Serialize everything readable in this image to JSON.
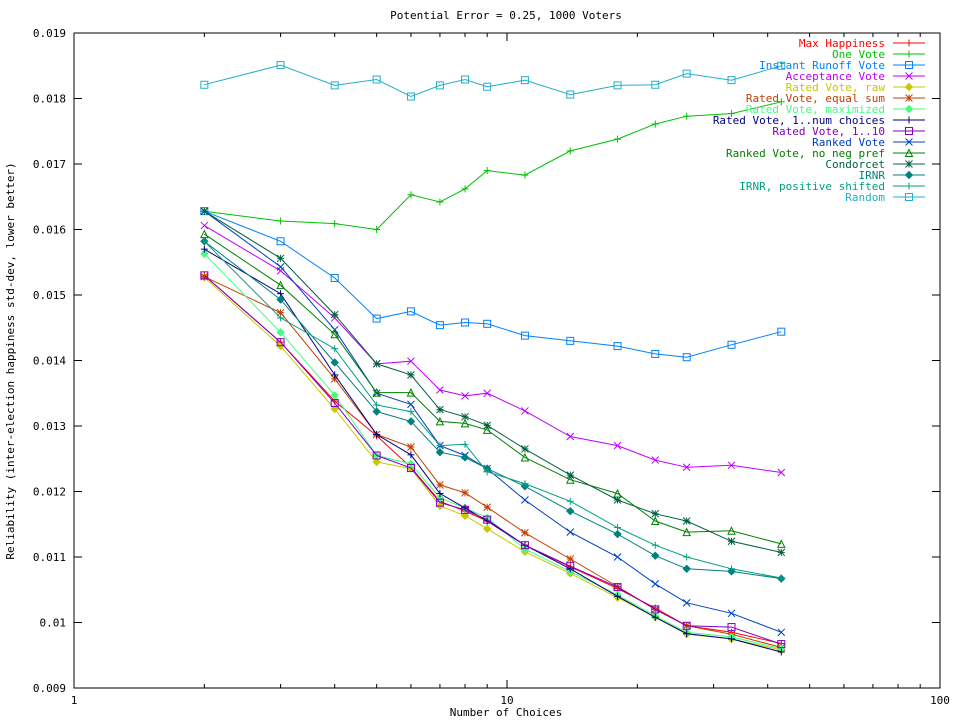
{
  "chart_data": {
    "type": "line",
    "title": "Potential Error = 0.25, 1000 Voters",
    "xlabel": "Number of Choices",
    "ylabel": "Reliability (inter-election happiness std-dev, lower better)",
    "xscale": "log",
    "xlim": [
      1,
      100
    ],
    "ylim": [
      0.009,
      0.019
    ],
    "xticks": [
      1,
      10,
      100
    ],
    "xtick_labels": [
      "1",
      "10",
      "100"
    ],
    "yticks": [
      0.009,
      0.01,
      0.011,
      0.012,
      0.013,
      0.014,
      0.015,
      0.016,
      0.017,
      0.018,
      0.019
    ],
    "ytick_labels": [
      "0.009",
      "0.01",
      "0.011",
      "0.012",
      "0.013",
      "0.014",
      "0.015",
      "0.016",
      "0.017",
      "0.018",
      "0.019"
    ],
    "grid": false,
    "legend_position": "top-right",
    "x": [
      2,
      3,
      4,
      5,
      6,
      7,
      8,
      9,
      11,
      14,
      18,
      22,
      26,
      33,
      43
    ],
    "series": [
      {
        "name": "Max Happiness",
        "color": "#ff0000",
        "marker": "plus",
        "values": [
          0.0153,
          0.01428,
          0.01338,
          0.01285,
          0.01237,
          0.01185,
          0.0117,
          0.01155,
          0.01118,
          0.01085,
          0.01052,
          0.01022,
          0.00995,
          0.00985,
          0.00968
        ]
      },
      {
        "name": "One Vote",
        "color": "#00c000",
        "marker": "plus",
        "values": [
          0.01628,
          0.01613,
          0.01609,
          0.016,
          0.01653,
          0.01642,
          0.01662,
          0.0169,
          0.01683,
          0.0172,
          0.01738,
          0.01761,
          0.01773,
          0.01777,
          0.01795
        ]
      },
      {
        "name": "Instant Runoff Vote",
        "color": "#0080ff",
        "marker": "square",
        "values": [
          0.01628,
          0.01582,
          0.01526,
          0.01464,
          0.01475,
          0.01454,
          0.01458,
          0.01456,
          0.01438,
          0.0143,
          0.01422,
          0.0141,
          0.01405,
          0.01424,
          0.01444
        ]
      },
      {
        "name": "Acceptance Vote",
        "color": "#c000ff",
        "marker": "x",
        "values": [
          0.01606,
          0.01537,
          0.01465,
          0.01395,
          0.01399,
          0.01355,
          0.01346,
          0.0135,
          0.01323,
          0.01284,
          0.0127,
          0.01248,
          0.01237,
          0.0124,
          0.01229
        ]
      },
      {
        "name": "Rated Vote, raw",
        "color": "#c8c800",
        "marker": "diamond",
        "values": [
          0.01527,
          0.01422,
          0.01326,
          0.01245,
          0.01235,
          0.01178,
          0.01163,
          0.01143,
          0.01108,
          0.01075,
          0.01038,
          0.01008,
          0.00982,
          0.00975,
          0.00958
        ]
      },
      {
        "name": "Rated Vote, equal sum",
        "color": "#c04000",
        "marker": "star",
        "values": [
          0.01528,
          0.01473,
          0.01372,
          0.01287,
          0.01268,
          0.0121,
          0.01198,
          0.01176,
          0.01137,
          0.01097,
          0.01055,
          0.0102,
          0.00995,
          0.00982,
          0.00962
        ]
      },
      {
        "name": "Rated Vote, maximized",
        "color": "#40ff80",
        "marker": "diamond",
        "values": [
          0.01563,
          0.01443,
          0.01347,
          0.01255,
          0.01242,
          0.0119,
          0.01175,
          0.0116,
          0.01112,
          0.01078,
          0.01042,
          0.0101,
          0.00985,
          0.00978,
          0.0096
        ]
      },
      {
        "name": "Rated Vote, 1..num choices",
        "color": "#000080",
        "marker": "plus",
        "values": [
          0.0157,
          0.01502,
          0.01378,
          0.01287,
          0.01256,
          0.01197,
          0.01175,
          0.01155,
          0.01118,
          0.01082,
          0.0104,
          0.01008,
          0.00983,
          0.00975,
          0.00955
        ]
      },
      {
        "name": "Rated Vote, 1..10",
        "color": "#8000c0",
        "marker": "square",
        "values": [
          0.0153,
          0.01428,
          0.01335,
          0.01255,
          0.01236,
          0.01183,
          0.01172,
          0.01157,
          0.01118,
          0.01086,
          0.01054,
          0.0102,
          0.00995,
          0.00993,
          0.00967
        ]
      },
      {
        "name": "Ranked Vote",
        "color": "#0040c0",
        "marker": "x",
        "values": [
          0.01628,
          0.01543,
          0.01447,
          0.0135,
          0.01333,
          0.0127,
          0.01255,
          0.01235,
          0.01187,
          0.01138,
          0.011,
          0.01059,
          0.0103,
          0.01014,
          0.00985
        ]
      },
      {
        "name": "Ranked Vote, no neg pref",
        "color": "#008000",
        "marker": "triangle",
        "values": [
          0.01593,
          0.01515,
          0.0144,
          0.01351,
          0.01351,
          0.01307,
          0.01304,
          0.01294,
          0.01252,
          0.01218,
          0.01197,
          0.01155,
          0.01138,
          0.0114,
          0.0112
        ]
      },
      {
        "name": "Condorcet",
        "color": "#006040",
        "marker": "star",
        "values": [
          0.01628,
          0.01556,
          0.0147,
          0.01395,
          0.01378,
          0.01325,
          0.01314,
          0.01301,
          0.01265,
          0.01225,
          0.01187,
          0.01166,
          0.01155,
          0.01124,
          0.01107
        ]
      },
      {
        "name": "IRNR",
        "color": "#008080",
        "marker": "diamond",
        "values": [
          0.01582,
          0.01493,
          0.01397,
          0.01322,
          0.01307,
          0.0126,
          0.01252,
          0.01235,
          0.01208,
          0.0117,
          0.01135,
          0.01102,
          0.01082,
          0.01078,
          0.01067
        ]
      },
      {
        "name": "IRNR, positive shifted",
        "color": "#00a080",
        "marker": "plus",
        "values": [
          0.01582,
          0.01465,
          0.01418,
          0.01332,
          0.01322,
          0.0127,
          0.01272,
          0.0123,
          0.01212,
          0.01185,
          0.01145,
          0.01118,
          0.011,
          0.01082,
          0.01068
        ]
      },
      {
        "name": "Random",
        "color": "#20b0c8",
        "marker": "square",
        "values": [
          0.01821,
          0.01851,
          0.0182,
          0.01829,
          0.01803,
          0.0182,
          0.01829,
          0.01818,
          0.01828,
          0.01806,
          0.0182,
          0.01821,
          0.01838,
          0.01828,
          0.0185
        ]
      }
    ]
  }
}
